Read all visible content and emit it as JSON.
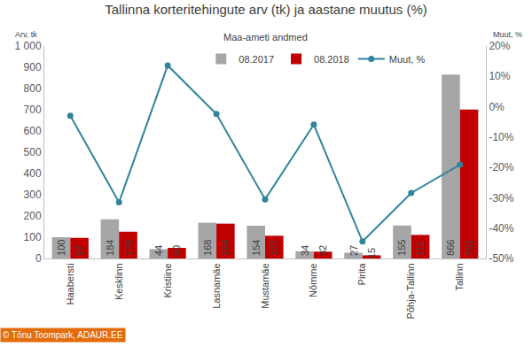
{
  "chart_data": {
    "type": "bar",
    "title": "Tallinna korteritehingute arv (tk) ja aastane muutus (%)",
    "subtitle": "Maa-ameti andmed",
    "ylabel": "Arv, tk",
    "y2label": "Muut, %",
    "source": "© Tõnu Toompark, ADAUR.EE",
    "categories": [
      "Haabersti",
      "Kesklinn",
      "Kristiine",
      "Lasnamäe",
      "Mustamäe",
      "Nõmme",
      "Pirita",
      "Põhja-Tallinn",
      "Tallinn"
    ],
    "series": [
      {
        "name": "08.2017",
        "color": "#a6a6a6",
        "values": [
          100,
          184,
          44,
          168,
          154,
          34,
          27,
          155,
          866
        ]
      },
      {
        "name": "08.2018",
        "color": "#c00000",
        "values": [
          97,
          126,
          50,
          164,
          107,
          32,
          15,
          111,
          701
        ]
      },
      {
        "name": "Muut, %",
        "type": "line",
        "axis": "y2",
        "color": "#31849b",
        "marker": "circle",
        "values": [
          -3.0,
          -31.5,
          13.6,
          -2.4,
          -30.5,
          -5.9,
          -44.4,
          -28.4,
          -19.1
        ]
      }
    ],
    "ylim": [
      0,
      1000
    ],
    "yticks": [
      0,
      100,
      200,
      300,
      400,
      500,
      600,
      700,
      800,
      900,
      {
        "value": 1000,
        "label": "1 000"
      }
    ],
    "y2lim": [
      -50,
      20
    ],
    "y2ticks": [
      {
        "value": -50,
        "label": "-50%"
      },
      {
        "value": -40,
        "label": "-40%"
      },
      {
        "value": -30,
        "label": "-30%"
      },
      {
        "value": -20,
        "label": "-20%"
      },
      {
        "value": -10,
        "label": "-10%"
      },
      {
        "value": 0,
        "label": "0%"
      },
      {
        "value": 10,
        "label": "10%"
      },
      {
        "value": 20,
        "label": "20%"
      }
    ],
    "grid": false,
    "legend": "top",
    "data_labels": true
  }
}
